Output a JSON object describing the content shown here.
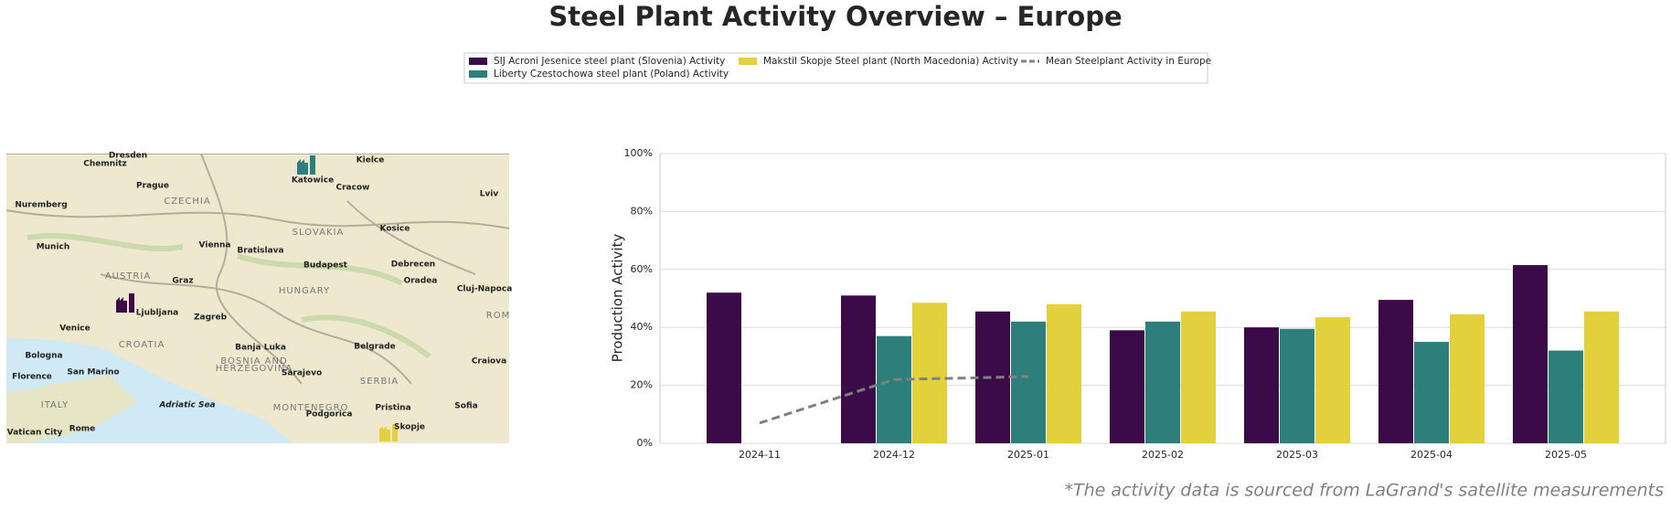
{
  "chart_data": {
    "type": "bar",
    "title": "Steel Plant Activity Overview – Europe",
    "y_label": "Production Activity",
    "footnote": "*The activity data is sourced from LaGrand's satellite measurements",
    "categories": [
      "2024-11",
      "2024-12",
      "2025-01",
      "2025-02",
      "2025-03",
      "2025-04",
      "2025-05"
    ],
    "series": [
      {
        "name": "SIJ Acroni Jesenice steel plant (Slovenia) Activity",
        "color": "#3b0b47",
        "values": [
          52,
          51,
          45.5,
          39,
          40,
          49.5,
          61.5
        ]
      },
      {
        "name": "Liberty Czestochowa steel plant (Poland) Activity",
        "color": "#2c7f7a",
        "values": [
          null,
          37,
          42,
          42,
          39.5,
          35,
          32
        ]
      },
      {
        "name": "Makstil Skopje Steel plant (North Macedonia) Activity",
        "color": "#e2d03c",
        "values": [
          null,
          48.5,
          48,
          45.5,
          43.5,
          44.5,
          45.5
        ]
      },
      {
        "name": "Mean Steelplant Activity in Europe",
        "color": "#808080",
        "type": "line",
        "dashed": true,
        "values": [
          7,
          22,
          23,
          null,
          null,
          null,
          null
        ]
      }
    ],
    "ylim": [
      0,
      100
    ],
    "yticks": [
      {
        "value": 0,
        "label": "0%"
      },
      {
        "value": 20,
        "label": "20%"
      },
      {
        "value": 40,
        "label": "40%"
      },
      {
        "value": 60,
        "label": "60%"
      },
      {
        "value": 80,
        "label": "80%"
      },
      {
        "value": 100,
        "label": "100%"
      }
    ],
    "grid": true,
    "legend": "top"
  },
  "map": {
    "labels": [
      "Dresden",
      "Chemnitz",
      "Prague",
      "CZECHIA",
      "Nuremberg",
      "Munich",
      "AUSTRIA",
      "Vienna",
      "Bratislava",
      "SLOVAKIA",
      "Katowice",
      "Cracow",
      "Kielce",
      "Kosice",
      "Lviv",
      "Budapest",
      "HUNGARY",
      "Debrecen",
      "Oradea",
      "Cluj-Napoca",
      "Graz",
      "Ljubljana",
      "Zagreb",
      "Venice",
      "CROATIA",
      "Bologna",
      "San Marino",
      "Florence",
      "Banja Luka",
      "BOSNIA AND",
      "HERZEGOVINA",
      "Belgrade",
      "Sarajevo",
      "SERBIA",
      "Craiova",
      "ITALY",
      "Adriatic Sea",
      "MONTENEGRO",
      "Podgorica",
      "Pristina",
      "Sofia",
      "Rome",
      "Vatican City",
      "Skopje",
      "ROM"
    ]
  }
}
